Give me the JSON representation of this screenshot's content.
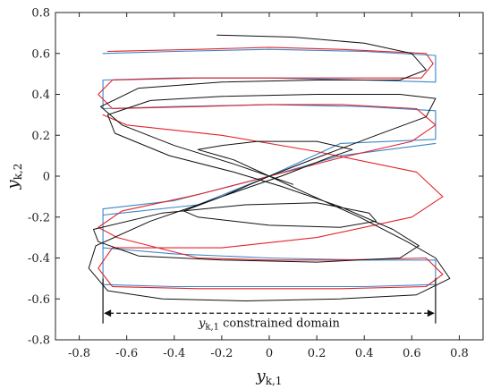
{
  "chart_data": {
    "type": "line",
    "xlabel": "y",
    "xlabel_sub": "k,1",
    "ylabel": "y",
    "ylabel_sub": "k,2",
    "xlim": [
      -0.9,
      0.9
    ],
    "ylim": [
      -0.8,
      0.8
    ],
    "xticks": [
      -0.8,
      -0.6,
      -0.4,
      -0.2,
      0,
      0.2,
      0.4,
      0.6,
      0.8
    ],
    "yticks": [
      -0.8,
      -0.6,
      -0.4,
      -0.2,
      0,
      0.2,
      0.4,
      0.6,
      0.8
    ],
    "xtick_labels": [
      "-0.8",
      "-0.6",
      "-0.4",
      "-0.2",
      "0",
      "0.2",
      "0.4",
      "0.6",
      "0.8"
    ],
    "ytick_labels": [
      "-0.8",
      "-0.6",
      "-0.4",
      "-0.2",
      "0",
      "0.2",
      "0.4",
      "0.6",
      "0.8"
    ],
    "grid": false,
    "annotation": {
      "text_var": "y",
      "text_sub": "k,1",
      "text_rest": " constrained domain",
      "x_from": -0.7,
      "x_to": 0.7,
      "y": -0.67,
      "bound_top": -0.5,
      "bound_bottom": -0.72
    },
    "series": [
      {
        "color": "#3a86c8",
        "width": 1.1,
        "points": [
          [
            -0.7,
            0.6
          ],
          [
            -0.4,
            0.61
          ],
          [
            0.0,
            0.62
          ],
          [
            0.4,
            0.61
          ],
          [
            0.7,
            0.59
          ],
          [
            0.7,
            0.46
          ],
          [
            0.4,
            0.47
          ],
          [
            0.0,
            0.48
          ],
          [
            -0.4,
            0.48
          ],
          [
            -0.7,
            0.47
          ],
          [
            -0.7,
            0.33
          ],
          [
            -0.4,
            0.34
          ],
          [
            0.0,
            0.35
          ],
          [
            0.4,
            0.34
          ],
          [
            0.7,
            0.32
          ],
          [
            0.7,
            0.18
          ],
          [
            0.3,
            0.16
          ],
          [
            0.0,
            0.0
          ],
          [
            -0.4,
            -0.12
          ],
          [
            -0.7,
            -0.16
          ],
          [
            -0.7,
            -0.35
          ],
          [
            -0.4,
            -0.38
          ],
          [
            0.0,
            -0.4
          ],
          [
            0.4,
            -0.41
          ],
          [
            0.7,
            -0.41
          ],
          [
            0.7,
            -0.53
          ],
          [
            0.4,
            -0.54
          ],
          [
            0.0,
            -0.54
          ],
          [
            -0.4,
            -0.54
          ],
          [
            -0.7,
            -0.53
          ],
          [
            -0.7,
            -0.19
          ],
          [
            -0.3,
            -0.14
          ],
          [
            0.0,
            0.0
          ],
          [
            0.3,
            0.1
          ],
          [
            0.7,
            0.16
          ]
        ]
      },
      {
        "color": "#e0242b",
        "width": 1.1,
        "points": [
          [
            -0.68,
            0.61
          ],
          [
            -0.3,
            0.62
          ],
          [
            0.0,
            0.63
          ],
          [
            0.3,
            0.62
          ],
          [
            0.66,
            0.6
          ],
          [
            0.69,
            0.55
          ],
          [
            0.64,
            0.48
          ],
          [
            0.3,
            0.48
          ],
          [
            0.0,
            0.48
          ],
          [
            -0.3,
            0.48
          ],
          [
            -0.66,
            0.47
          ],
          [
            -0.72,
            0.4
          ],
          [
            -0.66,
            0.33
          ],
          [
            -0.3,
            0.34
          ],
          [
            0.0,
            0.35
          ],
          [
            0.3,
            0.35
          ],
          [
            0.62,
            0.33
          ],
          [
            0.7,
            0.25
          ],
          [
            0.6,
            0.17
          ],
          [
            0.3,
            0.09
          ],
          [
            0.0,
            0.0
          ],
          [
            -0.3,
            -0.09
          ],
          [
            -0.62,
            -0.17
          ],
          [
            -0.72,
            -0.25
          ],
          [
            -0.64,
            -0.3
          ],
          [
            -0.3,
            -0.4
          ],
          [
            0.0,
            -0.41
          ],
          [
            0.3,
            -0.41
          ],
          [
            0.66,
            -0.4
          ],
          [
            0.73,
            -0.48
          ],
          [
            0.66,
            -0.54
          ],
          [
            0.3,
            -0.55
          ],
          [
            0.0,
            -0.55
          ],
          [
            -0.3,
            -0.55
          ],
          [
            -0.66,
            -0.54
          ],
          [
            -0.72,
            -0.45
          ],
          [
            -0.66,
            -0.35
          ],
          [
            -0.2,
            -0.35
          ],
          [
            0.2,
            -0.3
          ],
          [
            0.6,
            -0.2
          ],
          [
            0.73,
            -0.1
          ],
          [
            0.62,
            0.02
          ],
          [
            0.2,
            0.12
          ],
          [
            -0.2,
            0.2
          ],
          [
            -0.6,
            0.25
          ],
          [
            -0.7,
            0.3
          ]
        ]
      },
      {
        "color": "#111111",
        "width": 1.0,
        "points": [
          [
            -0.22,
            0.69
          ],
          [
            0.1,
            0.68
          ],
          [
            0.4,
            0.65
          ],
          [
            0.6,
            0.6
          ],
          [
            0.66,
            0.52
          ],
          [
            0.55,
            0.47
          ],
          [
            0.2,
            0.47
          ],
          [
            -0.2,
            0.46
          ],
          [
            -0.55,
            0.43
          ],
          [
            -0.71,
            0.34
          ],
          [
            -0.62,
            0.25
          ],
          [
            -0.4,
            0.15
          ],
          [
            -0.15,
            0.06
          ],
          [
            0.0,
            0.0
          ],
          [
            0.15,
            -0.08
          ],
          [
            0.38,
            -0.2
          ],
          [
            0.58,
            -0.32
          ],
          [
            0.7,
            -0.4
          ],
          [
            0.76,
            -0.5
          ],
          [
            0.62,
            -0.58
          ],
          [
            0.3,
            -0.6
          ],
          [
            -0.1,
            -0.61
          ],
          [
            -0.45,
            -0.6
          ],
          [
            -0.68,
            -0.56
          ],
          [
            -0.76,
            -0.45
          ],
          [
            -0.73,
            -0.34
          ],
          [
            -0.5,
            -0.22
          ],
          [
            -0.2,
            -0.1
          ],
          [
            0.0,
            0.0
          ],
          [
            0.2,
            0.09
          ],
          [
            0.45,
            0.2
          ],
          [
            0.66,
            0.29
          ],
          [
            0.7,
            0.38
          ],
          [
            0.55,
            0.4
          ],
          [
            0.2,
            0.4
          ],
          [
            -0.2,
            0.39
          ],
          [
            -0.5,
            0.37
          ],
          [
            -0.68,
            0.3
          ],
          [
            -0.65,
            0.21
          ],
          [
            -0.42,
            0.1
          ],
          [
            -0.15,
            0.02
          ],
          [
            0.05,
            -0.05
          ],
          [
            0.3,
            -0.15
          ],
          [
            0.52,
            -0.26
          ],
          [
            0.63,
            -0.34
          ],
          [
            0.55,
            -0.4
          ],
          [
            0.2,
            -0.42
          ],
          [
            -0.2,
            -0.41
          ],
          [
            -0.55,
            -0.39
          ],
          [
            -0.72,
            -0.32
          ],
          [
            -0.74,
            -0.26
          ],
          [
            -0.45,
            -0.18
          ],
          [
            -0.1,
            -0.14
          ],
          [
            0.2,
            -0.13
          ],
          [
            0.42,
            -0.18
          ],
          [
            0.45,
            -0.22
          ],
          [
            0.3,
            -0.25
          ],
          [
            0.0,
            -0.24
          ],
          [
            -0.3,
            -0.2
          ],
          [
            -0.36,
            -0.17
          ],
          [
            -0.2,
            -0.1
          ],
          [
            0.05,
            0.0
          ],
          [
            0.25,
            0.09
          ],
          [
            0.35,
            0.13
          ],
          [
            0.2,
            0.17
          ],
          [
            -0.05,
            0.17
          ],
          [
            -0.2,
            0.15
          ],
          [
            -0.3,
            0.13
          ],
          [
            -0.15,
            0.08
          ],
          [
            0.0,
            0.0
          ],
          [
            0.1,
            -0.04
          ]
        ]
      }
    ]
  }
}
